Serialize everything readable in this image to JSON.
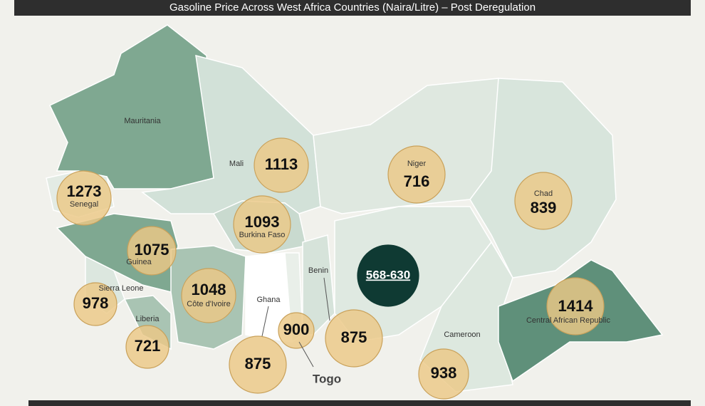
{
  "title": "Gasoline Price Across West Africa Countries (Naira/Litre) – Post Deregulation",
  "countries": [
    {
      "name": "Mauritania"
    },
    {
      "name": "Mali",
      "price": 1113
    },
    {
      "name": "Niger",
      "price": 716
    },
    {
      "name": "Chad",
      "price": 839
    },
    {
      "name": "Senegal",
      "price": 1273
    },
    {
      "name": "Burkina Faso",
      "price": 1093
    },
    {
      "name": "Guinea",
      "price": 1075
    },
    {
      "name": "Sierra Leone",
      "price": 978
    },
    {
      "name": "Côte d'Ivoire",
      "price": 1048
    },
    {
      "name": "Liberia",
      "price": 721
    },
    {
      "name": "Ghana",
      "price": 875
    },
    {
      "name": "Togo",
      "price": 900
    },
    {
      "name": "Benin",
      "price": 875
    },
    {
      "price": "568-630"
    },
    {
      "name": "Cameroon",
      "price": 938
    },
    {
      "name": "Central African Republic",
      "price": 1414
    }
  ]
}
